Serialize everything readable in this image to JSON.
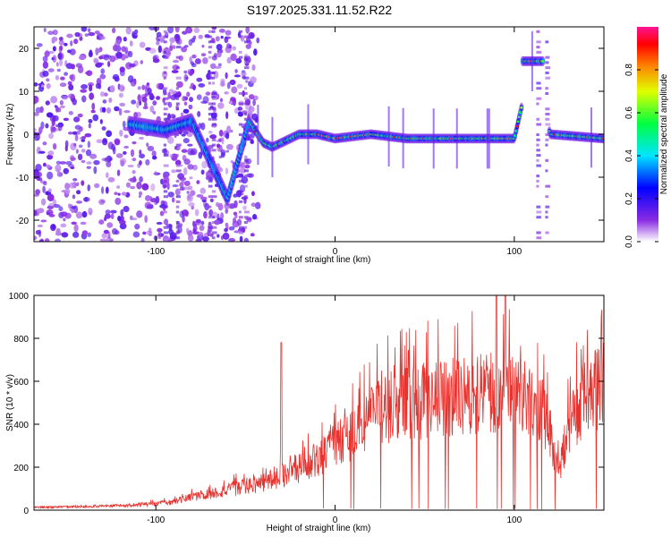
{
  "title": "S197.2025.331.11.52.R22",
  "chart_data": [
    {
      "type": "heatmap",
      "title": "S197.2025.331.11.52.R22",
      "xlabel": "Height of straight line (km)",
      "ylabel": "Frequency (Hz)",
      "xlim": [
        -168,
        150
      ],
      "ylim": [
        -25,
        25
      ],
      "xticks": [
        -100,
        0,
        100
      ],
      "xtick_labels": [
        "-100",
        "0",
        "100"
      ],
      "yticks": [
        -20,
        -10,
        0,
        10,
        20
      ],
      "ytick_labels": [
        "-20",
        "-10",
        "0",
        "10",
        "20"
      ],
      "colorbar": {
        "label": "Normalized spectral amplitude",
        "range": [
          0,
          1
        ],
        "ticks": [
          0,
          0.2,
          0.4,
          0.6,
          0.8
        ],
        "tick_labels": [
          "0.0",
          "0.2",
          "0.4",
          "0.6",
          "0.8"
        ]
      },
      "ridge": {
        "description_points_x": [
          -110,
          -95,
          -80,
          -60,
          -48,
          -40,
          -35,
          -30,
          -20,
          -10,
          0,
          20,
          40,
          60,
          80,
          100,
          110,
          120,
          150
        ],
        "description_points_freq": [
          2,
          1,
          3,
          -15,
          3,
          -2,
          -3,
          -2,
          0,
          0,
          -1,
          0,
          -1,
          -1,
          -1,
          -1,
          17,
          0,
          -1
        ]
      }
    },
    {
      "type": "line",
      "xlabel": "Height of straight line (km)",
      "ylabel": "SNR (10 * v/v)",
      "xlim": [
        -168,
        150
      ],
      "ylim": [
        0,
        1000
      ],
      "xticks": [
        -100,
        0,
        100
      ],
      "xtick_labels": [
        "-100",
        "0",
        "100"
      ],
      "yticks": [
        0,
        200,
        400,
        600,
        800,
        1000
      ],
      "ytick_labels": [
        "0",
        "200",
        "400",
        "600",
        "800",
        "1000"
      ],
      "series": [
        {
          "name": "SNR",
          "color": "#e8322e",
          "envelope_x": [
            -168,
            -140,
            -120,
            -100,
            -90,
            -80,
            -70,
            -60,
            -50,
            -40,
            -30,
            -20,
            -10,
            0,
            10,
            20,
            30,
            40,
            50,
            60,
            70,
            80,
            90,
            100,
            110,
            115,
            120,
            125,
            130,
            140,
            150
          ],
          "envelope_y": [
            15,
            20,
            25,
            35,
            45,
            70,
            90,
            110,
            130,
            150,
            190,
            230,
            280,
            350,
            420,
            500,
            560,
            580,
            600,
            620,
            630,
            640,
            650,
            640,
            620,
            560,
            430,
            200,
            450,
            620,
            700
          ],
          "spikes_x": [
            -30,
            90,
            95
          ],
          "spikes_y": [
            780,
            1000,
            1000
          ]
        }
      ]
    }
  ]
}
